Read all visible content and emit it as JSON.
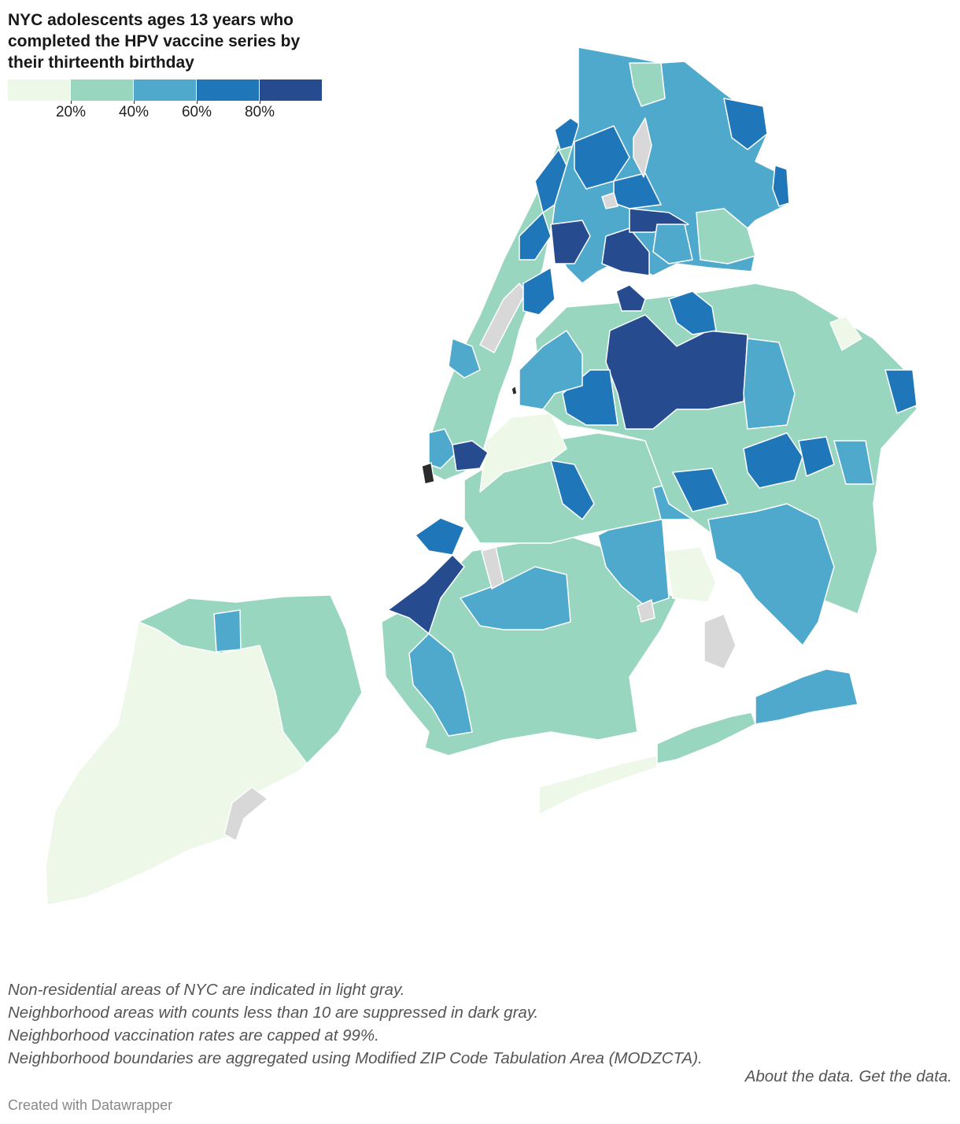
{
  "title": "NYC adolescents ages 13 years who completed the HPV vaccine series by their thirteenth birthday",
  "legend": {
    "colors": [
      "#eef8e8",
      "#98d6c0",
      "#4ea9cc",
      "#1f77b9",
      "#264c8f"
    ],
    "ticks": [
      "20%",
      "40%",
      "60%",
      "80%"
    ]
  },
  "colors": {
    "non_residential": "#d8d8d8",
    "suppressed": "#2b2b2b",
    "boundary": "#ffffff"
  },
  "notes": [
    "Non-residential areas of NYC are indicated in light gray.",
    "Neighborhood areas with counts less than 10 are suppressed in dark gray.",
    "Neighborhood vaccination rates are capped at 99%.",
    "Neighborhood boundaries are aggregated using Modified ZIP Code Tabulation Area (MODZCTA)."
  ],
  "links": {
    "about": "About the data.",
    "get": "Get the data."
  },
  "credit": "Created with Datawrapper"
}
